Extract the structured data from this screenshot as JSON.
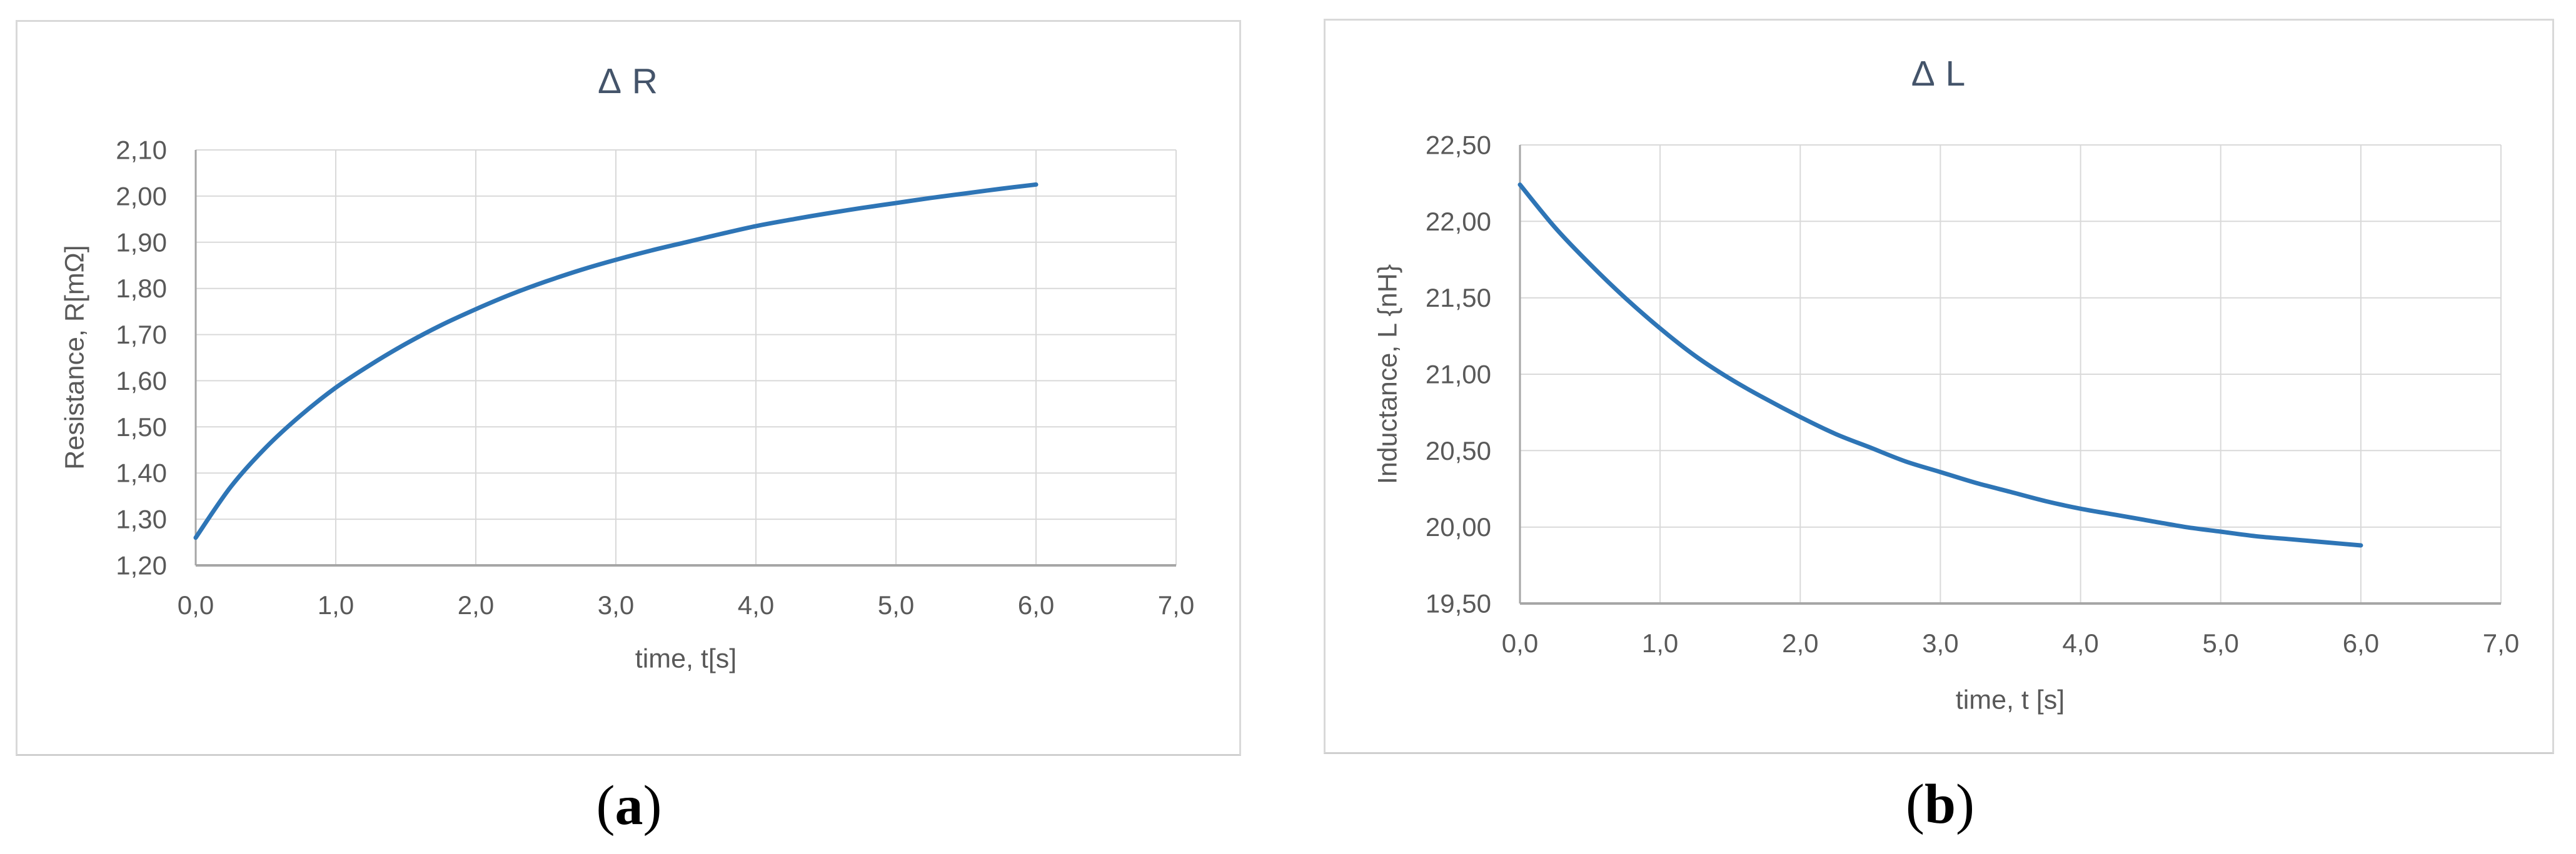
{
  "page": {
    "background": "#FFFFFF"
  },
  "styles": {
    "line_color": "#2E75B6",
    "grid_color": "#D9D9D9",
    "axis_color": "#A6A6A6",
    "tick_color": "#595959",
    "title_color": "#44546A",
    "axis_title_color": "#595959",
    "caption_color": "#000000",
    "panel_border_color": "#D9D9D9"
  },
  "chart_data": [
    {
      "type": "line",
      "title": "Δ R",
      "xlabel": "time, t[s]",
      "ylabel": "Resistance, R[mΩ]",
      "caption_open": "(",
      "caption_letter": "a",
      "caption_close": ")",
      "xlim": [
        0.0,
        7.0
      ],
      "ylim": [
        1.2,
        2.1
      ],
      "grid": true,
      "legend": false,
      "x_ticks": [
        0,
        1,
        2,
        3,
        4,
        5,
        6,
        7
      ],
      "x_tick_labels": [
        "0,0",
        "1,0",
        "2,0",
        "3,0",
        "4,0",
        "5,0",
        "6,0",
        "7,0"
      ],
      "y_ticks": [
        1.2,
        1.3,
        1.4,
        1.5,
        1.6,
        1.7,
        1.8,
        1.9,
        2.0,
        2.1
      ],
      "y_tick_labels": [
        "1,20",
        "1,30",
        "1,40",
        "1,50",
        "1,60",
        "1,70",
        "1,80",
        "1,90",
        "2,00",
        "2,10"
      ],
      "series": [
        {
          "name": "ΔR",
          "x": [
            0,
            0.25,
            0.5,
            0.75,
            1,
            1.25,
            1.5,
            1.75,
            2,
            2.25,
            2.5,
            2.75,
            3,
            3.25,
            3.5,
            3.75,
            4,
            4.25,
            4.5,
            4.75,
            5,
            5.25,
            5.5,
            5.75,
            6
          ],
          "y": [
            1.26,
            1.37,
            1.455,
            1.525,
            1.585,
            1.635,
            1.68,
            1.72,
            1.755,
            1.787,
            1.815,
            1.84,
            1.862,
            1.882,
            1.9,
            1.918,
            1.935,
            1.949,
            1.962,
            1.974,
            1.985,
            1.996,
            2.006,
            2.016,
            2.025
          ]
        }
      ]
    },
    {
      "type": "line",
      "title": "Δ L",
      "xlabel": "time, t [s]",
      "ylabel": "Inductance, L {nH}",
      "caption_open": "(",
      "caption_letter": "b",
      "caption_close": ")",
      "xlim": [
        0.0,
        7.0
      ],
      "ylim": [
        19.5,
        22.5
      ],
      "grid": true,
      "legend": false,
      "x_ticks": [
        0,
        1,
        2,
        3,
        4,
        5,
        6,
        7
      ],
      "x_tick_labels": [
        "0,0",
        "1,0",
        "2,0",
        "3,0",
        "4,0",
        "5,0",
        "6,0",
        "7,0"
      ],
      "y_ticks": [
        19.5,
        20.0,
        20.5,
        21.0,
        21.5,
        22.0,
        22.5
      ],
      "y_tick_labels": [
        "19,50",
        "20,00",
        "20,50",
        "21,00",
        "21,50",
        "22,00",
        "22,50"
      ],
      "series": [
        {
          "name": "ΔL",
          "x": [
            0,
            0.25,
            0.5,
            0.75,
            1,
            1.25,
            1.5,
            1.75,
            2,
            2.25,
            2.5,
            2.75,
            3,
            3.25,
            3.5,
            3.75,
            4,
            4.25,
            4.5,
            4.75,
            5,
            5.25,
            5.5,
            5.75,
            6
          ],
          "y": [
            22.24,
            21.96,
            21.72,
            21.5,
            21.3,
            21.12,
            20.97,
            20.84,
            20.72,
            20.61,
            20.52,
            20.43,
            20.36,
            20.29,
            20.23,
            20.17,
            20.12,
            20.08,
            20.04,
            20.0,
            19.97,
            19.94,
            19.92,
            19.9,
            19.88
          ]
        }
      ]
    }
  ]
}
